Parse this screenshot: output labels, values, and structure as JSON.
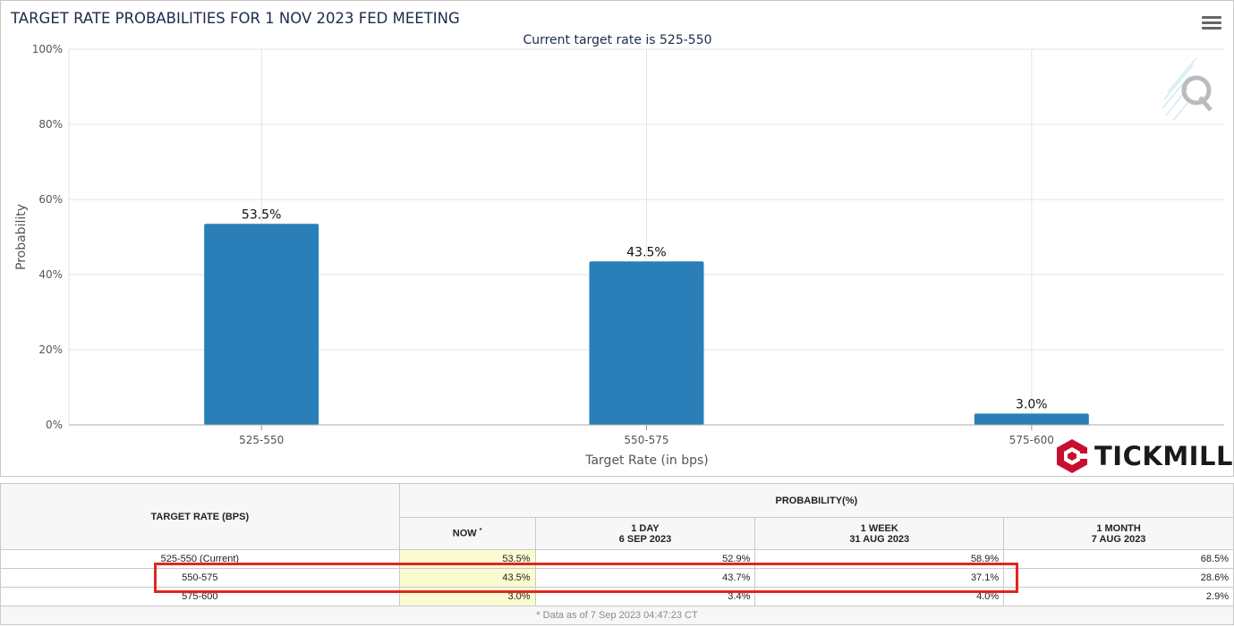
{
  "chart_data": {
    "type": "bar",
    "title": "TARGET RATE PROBABILITIES FOR 1 NOV 2023 FED MEETING",
    "subtitle": "Current target rate is 525-550",
    "xlabel": "Target Rate (in bps)",
    "ylabel": "Probability",
    "categories": [
      "525-550",
      "550-575",
      "575-600"
    ],
    "values": [
      53.5,
      43.5,
      3.0
    ],
    "data_labels": [
      "53.5%",
      "43.5%",
      "3.0%"
    ],
    "ylim": [
      0,
      100
    ],
    "yticks": [
      0,
      20,
      40,
      60,
      80,
      100
    ],
    "ytick_labels": [
      "0%",
      "20%",
      "40%",
      "60%",
      "80%",
      "100%"
    ],
    "grid": true,
    "legend": "none",
    "bar_color": "#2a7fb8"
  },
  "menu": {
    "icon": "hamburger-menu-icon"
  },
  "watermark": {
    "icon": "quikstrike-q-logo"
  },
  "brand": {
    "name": "TICKMILL",
    "color": "#c8102e"
  },
  "table": {
    "col_rate_header": "TARGET RATE (BPS)",
    "col_prob_header": "PROBABILITY(%)",
    "sub_headers": {
      "now": "NOW",
      "now_marker": "*",
      "day_line1": "1 DAY",
      "day_line2": "6 SEP 2023",
      "week_line1": "1 WEEK",
      "week_line2": "31 AUG 2023",
      "month_line1": "1 MONTH",
      "month_line2": "7 AUG 2023"
    },
    "rows": [
      {
        "rate": "525-550 (Current)",
        "now": "53.5%",
        "day": "52.9%",
        "week": "58.9%",
        "month": "68.5%"
      },
      {
        "rate": "550-575",
        "now": "43.5%",
        "day": "43.7%",
        "week": "37.1%",
        "month": "28.6%"
      },
      {
        "rate": "575-600",
        "now": "3.0%",
        "day": "3.4%",
        "week": "4.0%",
        "month": "2.9%"
      }
    ],
    "footnote": "* Data as of 7 Sep 2023 04:47:23 CT",
    "highlight_color": "#e0281f",
    "now_column_color": "#fbfbd2"
  }
}
